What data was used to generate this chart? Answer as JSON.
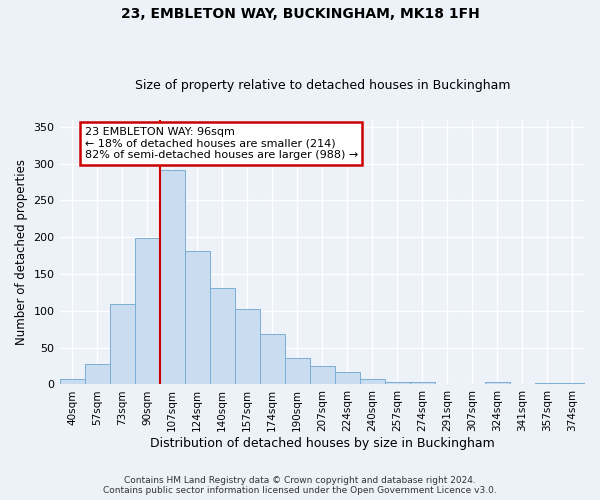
{
  "title1": "23, EMBLETON WAY, BUCKINGHAM, MK18 1FH",
  "title2": "Size of property relative to detached houses in Buckingham",
  "xlabel": "Distribution of detached houses by size in Buckingham",
  "ylabel": "Number of detached properties",
  "footer1": "Contains HM Land Registry data © Crown copyright and database right 2024.",
  "footer2": "Contains public sector information licensed under the Open Government Licence v3.0.",
  "bar_labels": [
    "40sqm",
    "57sqm",
    "73sqm",
    "90sqm",
    "107sqm",
    "124sqm",
    "140sqm",
    "157sqm",
    "174sqm",
    "190sqm",
    "207sqm",
    "224sqm",
    "240sqm",
    "257sqm",
    "274sqm",
    "291sqm",
    "307sqm",
    "324sqm",
    "341sqm",
    "357sqm",
    "374sqm"
  ],
  "bar_values": [
    7,
    28,
    110,
    199,
    291,
    181,
    131,
    103,
    68,
    36,
    25,
    17,
    8,
    4,
    3,
    1,
    1,
    3,
    0,
    2,
    2
  ],
  "bar_color": "#c9dcf0",
  "bar_edge_color": "#7aaed4",
  "vline_color": "#cc0000",
  "annotation_text": "23 EMBLETON WAY: 96sqm\n← 18% of detached houses are smaller (214)\n82% of semi-detached houses are larger (988) →",
  "annotation_box_color": "#ffffff",
  "annotation_box_edge": "#cc0000",
  "ylim": [
    0,
    360
  ],
  "yticks": [
    0,
    50,
    100,
    150,
    200,
    250,
    300,
    350
  ],
  "background_color": "#edf2f9",
  "grid_color": "#ffffff"
}
